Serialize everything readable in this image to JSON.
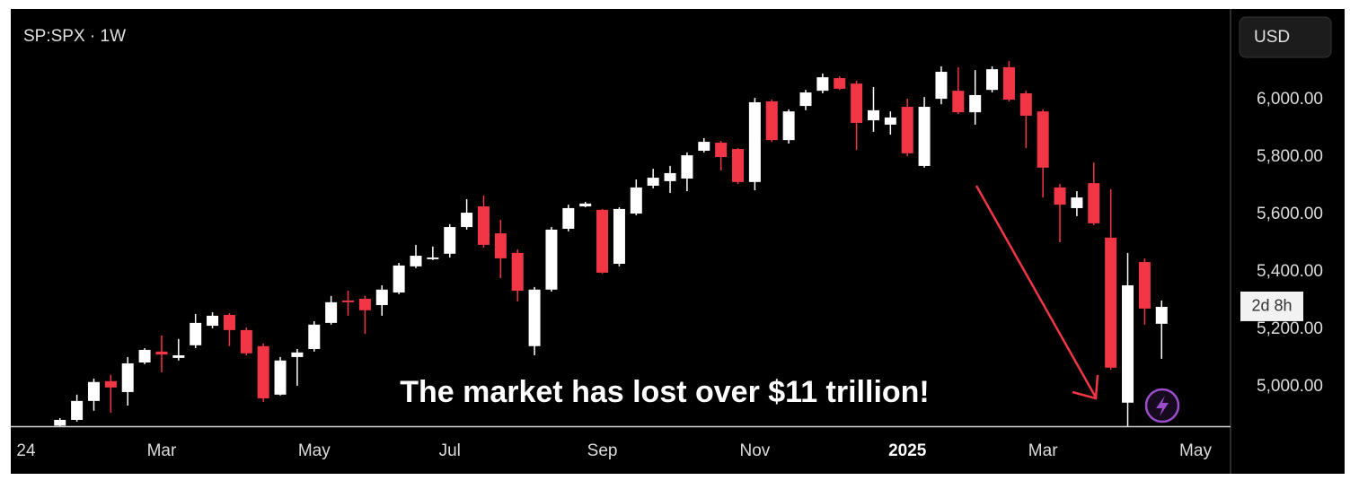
{
  "chart_data": {
    "type": "candlestick",
    "title": "SP:SPX · 1W",
    "currency": "USD",
    "annotation": "The market has lost over $11 trillion!",
    "countdown": "2d 8h",
    "up_color": "#ffffff",
    "down_color": "#f23645",
    "grid": false,
    "categories": [
      "24",
      null,
      null,
      null,
      null,
      null,
      null,
      null,
      "Mar",
      null,
      null,
      null,
      null,
      null,
      null,
      null,
      null,
      "May",
      null,
      null,
      null,
      null,
      null,
      null,
      null,
      "Jul",
      null,
      null,
      null,
      null,
      null,
      null,
      null,
      null,
      "Sep",
      null,
      null,
      null,
      null,
      null,
      null,
      null,
      null,
      "Nov",
      null,
      null,
      null,
      null,
      null,
      null,
      null,
      null,
      "2025",
      null,
      null,
      null,
      null,
      null,
      null,
      null,
      "Mar",
      null,
      null,
      null,
      null,
      null,
      null,
      null,
      null,
      "May"
    ],
    "open": [
      null,
      null,
      4864,
      4884,
      4950,
      5019,
      4981,
      5084,
      5122,
      5100,
      5144,
      5212,
      5250,
      5197,
      5141,
      4972,
      5103,
      5131,
      5222,
      5300,
      5306,
      5284,
      5328,
      5419,
      5444,
      5463,
      5556,
      5628,
      5534,
      5466,
      5141,
      5338,
      5550,
      5628,
      5616,
      5428,
      5603,
      5700,
      5716,
      5725,
      5822,
      5850,
      5828,
      5713,
      5994,
      5859,
      5978,
      6031,
      6075,
      6056,
      5928,
      5913,
      5975,
      5769,
      6003,
      6031,
      5956,
      6034,
      6113,
      6022,
      5959,
      5694,
      5622,
      5709,
      5519,
      4944,
      5434,
      5219,
      null,
      null
    ],
    "high": [
      null,
      null,
      4890,
      4972,
      5028,
      5041,
      5103,
      5134,
      5178,
      5166,
      5253,
      5259,
      5256,
      5206,
      5150,
      5103,
      5131,
      5228,
      5316,
      5334,
      5316,
      5353,
      5431,
      5494,
      5488,
      5566,
      5653,
      5666,
      5581,
      5478,
      5347,
      5556,
      5634,
      5644,
      5619,
      5625,
      5722,
      5759,
      5769,
      5816,
      5866,
      5856,
      5831,
      6006,
      6000,
      5966,
      6034,
      6091,
      6081,
      6066,
      6044,
      5959,
      6003,
      6009,
      6116,
      6113,
      6103,
      6116,
      6134,
      6031,
      5966,
      5706,
      5681,
      5781,
      5688,
      5466,
      5447,
      5300,
      null,
      null
    ],
    "low": [
      null,
      null,
      4862,
      4878,
      4916,
      4909,
      4934,
      5078,
      5050,
      5091,
      5134,
      5203,
      5141,
      5109,
      4947,
      4969,
      5003,
      5122,
      5216,
      5247,
      5184,
      5247,
      5322,
      5413,
      5441,
      5450,
      5547,
      5484,
      5378,
      5297,
      5109,
      5331,
      5541,
      5625,
      5394,
      5419,
      5597,
      5691,
      5675,
      5681,
      5816,
      5753,
      5706,
      5684,
      5853,
      5847,
      5963,
      6022,
      6034,
      5825,
      5888,
      5878,
      5803,
      5763,
      5984,
      5950,
      5913,
      6025,
      5994,
      5831,
      5659,
      5503,
      5594,
      5563,
      5059,
      4862,
      5216,
      5097,
      null,
      null
    ],
    "close": [
      null,
      null,
      4884,
      4950,
      5016,
      4997,
      5081,
      5128,
      5112,
      5109,
      5222,
      5247,
      5197,
      5116,
      4959,
      5091,
      5119,
      5216,
      5294,
      5294,
      5266,
      5338,
      5422,
      5456,
      5450,
      5556,
      5606,
      5494,
      5447,
      5334,
      5338,
      5547,
      5622,
      5638,
      5397,
      5619,
      5694,
      5728,
      5744,
      5806,
      5853,
      5800,
      5713,
      5991,
      5859,
      5959,
      6025,
      6078,
      6038,
      5919,
      5963,
      5938,
      5813,
      5975,
      6097,
      5956,
      6016,
      6106,
      6000,
      5944,
      5763,
      5634,
      5659,
      5569,
      5066,
      5353,
      5272,
      5278,
      null,
      null
    ],
    "ylim": [
      4862,
      6316
    ],
    "yticks": [
      {
        "value": 5000,
        "label": "5,000.00"
      },
      {
        "value": 5200,
        "label": "5,200.00"
      },
      {
        "value": 5400,
        "label": "5,400.00"
      },
      {
        "value": 5600,
        "label": "5,600.00"
      },
      {
        "value": 5800,
        "label": "5,800.00"
      },
      {
        "value": 6000,
        "label": "6,000.00"
      }
    ]
  }
}
